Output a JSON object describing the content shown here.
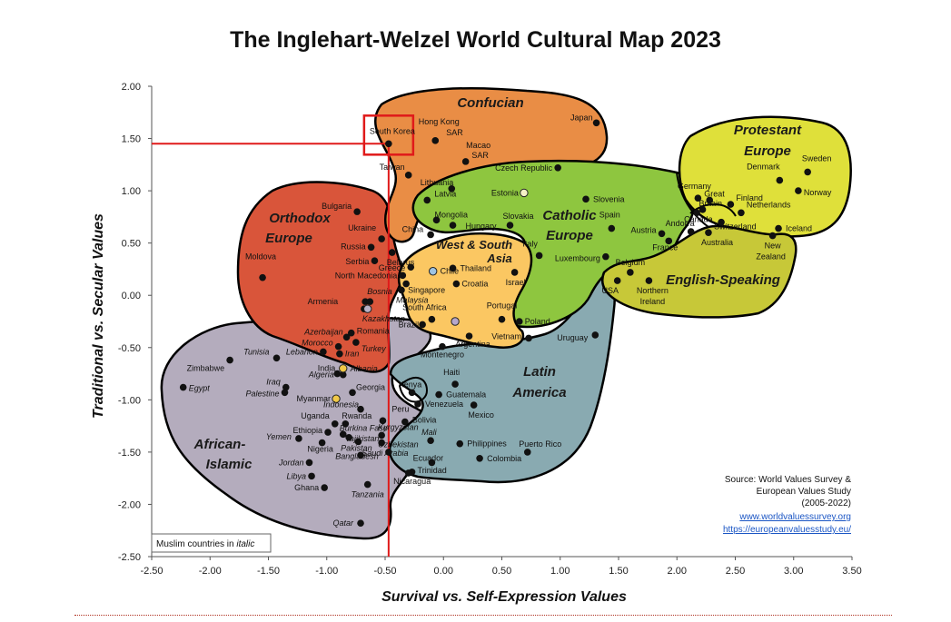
{
  "title": "The Inglehart-Welzel World Cultural Map 2023",
  "chart_data": {
    "type": "scatter",
    "title": "The Inglehart-Welzel World Cultural Map 2023",
    "xlabel": "Survival vs. Self-Expression Values",
    "ylabel": "Traditional vs. Secular Values",
    "xlim": [
      -2.5,
      3.5
    ],
    "ylim": [
      -2.5,
      2.0
    ],
    "xticks": [
      "-2.50",
      "-2.00",
      "-1.50",
      "-1.00",
      "-0.50",
      "0.00",
      "0.50",
      "1.00",
      "1.50",
      "2.00",
      "2.50",
      "3.00",
      "3.50"
    ],
    "yticks": [
      "2.00",
      "1.50",
      "1.00",
      "0.50",
      "0.00",
      "-0.50",
      "-1.00",
      "-1.50",
      "-2.00",
      "-2.50"
    ],
    "grid": false,
    "regions": [
      {
        "name": "Confucian",
        "color": "#e98d45"
      },
      {
        "name": "Protestant Europe",
        "color": "#dfe03a"
      },
      {
        "name": "Catholic Europe",
        "color": "#8ec63f"
      },
      {
        "name": "English-Speaking",
        "color": "#c7c838"
      },
      {
        "name": "Orthodox Europe",
        "color": "#d9553a"
      },
      {
        "name": "West & South Asia",
        "color": "#fbc762"
      },
      {
        "name": "Latin America",
        "color": "#89aab1"
      },
      {
        "name": "African-Islamic",
        "color": "#b4acbd"
      }
    ],
    "highlight": {
      "label": "South Korea",
      "x": -0.47,
      "y": 1.45,
      "color": "#e01a1a"
    },
    "countries": [
      {
        "name": "Japan",
        "x": 1.31,
        "y": 1.65,
        "lx": -4,
        "ly": -3,
        "a": "end"
      },
      {
        "name": "Hong Kong",
        "x": -0.07,
        "y": 1.48,
        "lx": 4,
        "ly": -18,
        "a": "middle"
      },
      {
        "name": "SAR",
        "x": -0.07,
        "y": 1.48,
        "lx": 12,
        "ly": -6,
        "a": "start"
      },
      {
        "name": "South Korea",
        "x": -0.47,
        "y": 1.45,
        "lx": 4,
        "ly": -11,
        "a": "middle"
      },
      {
        "name": "Macao",
        "x": 0.19,
        "y": 1.28,
        "lx": 14,
        "ly": -15,
        "a": "middle"
      },
      {
        "name": "SAR",
        "x": 0.19,
        "y": 1.28,
        "lx": 16,
        "ly": -4,
        "a": "middle"
      },
      {
        "name": "Taiwan",
        "x": -0.3,
        "y": 1.15,
        "lx": -4,
        "ly": -6,
        "a": "end"
      },
      {
        "name": "Czech Republic",
        "x": 0.98,
        "y": 1.22,
        "lx": -6,
        "ly": 3,
        "a": "end"
      },
      {
        "name": "Lithuania",
        "x": 0.07,
        "y": 1.02,
        "lx": 2,
        "ly": -4,
        "a": "end"
      },
      {
        "name": "Latvia",
        "x": -0.14,
        "y": 0.91,
        "lx": 8,
        "ly": -4,
        "a": "start"
      },
      {
        "name": "Estonia",
        "x": 0.69,
        "y": 0.98,
        "lx": -6,
        "ly": 3,
        "a": "end"
      },
      {
        "name": "Slovenia",
        "x": 1.22,
        "y": 0.92,
        "lx": 8,
        "ly": 3,
        "a": "start"
      },
      {
        "name": "Mongolia",
        "x": -0.06,
        "y": 0.72,
        "lx": -2,
        "ly": -3,
        "a": "start"
      },
      {
        "name": "Hungary",
        "x": 0.08,
        "y": 0.67,
        "lx": 14,
        "ly": 4,
        "a": "start"
      },
      {
        "name": "Slovakia",
        "x": 0.57,
        "y": 0.67,
        "lx": -8,
        "ly": -7,
        "a": "start"
      },
      {
        "name": "Spain",
        "x": 1.44,
        "y": 0.64,
        "lx": -2,
        "ly": -12,
        "a": "middle"
      },
      {
        "name": "China",
        "x": -0.11,
        "y": 0.58,
        "lx": -8,
        "ly": -3,
        "a": "end"
      },
      {
        "name": "Bulgaria",
        "x": -0.74,
        "y": 0.8,
        "lx": -6,
        "ly": -3,
        "a": "end"
      },
      {
        "name": "Ukraine",
        "x": -0.53,
        "y": 0.54,
        "lx": -6,
        "ly": -9,
        "a": "end"
      },
      {
        "name": "Russia",
        "x": -0.62,
        "y": 0.46,
        "lx": -6,
        "ly": 2,
        "a": "end"
      },
      {
        "name": "Belarus",
        "x": -0.44,
        "y": 0.41,
        "lx": -6,
        "ly": 14,
        "a": "start"
      },
      {
        "name": "Serbia",
        "x": -0.59,
        "y": 0.33,
        "lx": -6,
        "ly": 4,
        "a": "end"
      },
      {
        "name": "Greece",
        "x": -0.28,
        "y": 0.27,
        "lx": -6,
        "ly": 4,
        "a": "end"
      },
      {
        "name": "North Macedonia",
        "x": -0.35,
        "y": 0.19,
        "lx": -6,
        "ly": 3,
        "a": "end"
      },
      {
        "name": "Moldova",
        "x": -1.55,
        "y": 0.17,
        "lx": -2,
        "ly": -20,
        "a": "middle"
      },
      {
        "name": "Armenia",
        "x": -0.67,
        "y": -0.06,
        "lx": -30,
        "ly": 3,
        "a": "end"
      },
      {
        "name": "Bosnia",
        "x": -0.63,
        "y": -0.06,
        "lx": -3,
        "ly": -8,
        "a": "start",
        "it": true
      },
      {
        "name": "Kazakhstan",
        "x": -0.68,
        "y": -0.13,
        "lx": -2,
        "ly": 14,
        "a": "start",
        "it": true
      },
      {
        "name": "Romania",
        "x": -0.79,
        "y": -0.36,
        "lx": 6,
        "ly": 1,
        "a": "start"
      },
      {
        "name": "Thailand",
        "x": 0.08,
        "y": 0.26,
        "lx": 8,
        "ly": 3,
        "a": "start"
      },
      {
        "name": "Chile",
        "x": -0.09,
        "y": 0.23,
        "lx": 8,
        "ly": 3,
        "a": "start"
      },
      {
        "name": "Israel",
        "x": 0.61,
        "y": 0.22,
        "lx": -10,
        "ly": 14,
        "a": "start"
      },
      {
        "name": "Singapore",
        "x": -0.32,
        "y": 0.11,
        "lx": 2,
        "ly": 10,
        "a": "start"
      },
      {
        "name": "Croatia",
        "x": 0.11,
        "y": 0.11,
        "lx": 6,
        "ly": 3,
        "a": "start"
      },
      {
        "name": "Malaysia",
        "x": -0.36,
        "y": 0.05,
        "lx": -6,
        "ly": 14,
        "a": "start",
        "it": true
      },
      {
        "name": "South Africa",
        "x": -0.1,
        "y": -0.23,
        "lx": -8,
        "ly": -10,
        "a": "middle"
      },
      {
        "name": "Portugal",
        "x": 0.5,
        "y": -0.23,
        "lx": 0,
        "ly": -12,
        "a": "middle"
      },
      {
        "name": "Poland",
        "x": 0.65,
        "y": -0.25,
        "lx": 6,
        "ly": 3,
        "a": "start"
      },
      {
        "name": "Brazil",
        "x": -0.18,
        "y": -0.28,
        "lx": -4,
        "ly": 3,
        "a": "end"
      },
      {
        "name": "Vietnam",
        "x": 0.73,
        "y": -0.41,
        "lx": -8,
        "ly": 1,
        "a": "end"
      },
      {
        "name": "Argentina",
        "x": 0.22,
        "y": -0.39,
        "lx": 4,
        "ly": 12,
        "a": "middle"
      },
      {
        "name": "Luxembourg",
        "x": 1.39,
        "y": 0.37,
        "lx": -6,
        "ly": 5,
        "a": "end"
      },
      {
        "name": "Italy",
        "x": 0.82,
        "y": 0.38,
        "lx": -10,
        "ly": -10,
        "a": "middle"
      },
      {
        "name": "Belgium",
        "x": 1.6,
        "y": 0.22,
        "lx": 0,
        "ly": -8,
        "a": "middle"
      },
      {
        "name": "Austria",
        "x": 1.87,
        "y": 0.59,
        "lx": -6,
        "ly": -1,
        "a": "end"
      },
      {
        "name": "Andorra",
        "x": 2.12,
        "y": 0.61,
        "lx": -12,
        "ly": -6,
        "a": "middle"
      },
      {
        "name": "France",
        "x": 1.93,
        "y": 0.52,
        "lx": -4,
        "ly": 10,
        "a": "middle"
      },
      {
        "name": "Germany",
        "x": 2.18,
        "y": 0.93,
        "lx": -4,
        "ly": -10,
        "a": "middle"
      },
      {
        "name": "Great",
        "x": 2.28,
        "y": 0.91,
        "lx": -6,
        "ly": -4,
        "a": "start"
      },
      {
        "name": "Britain",
        "x": 2.22,
        "y": 0.82,
        "lx": -4,
        "ly": -4,
        "a": "start"
      },
      {
        "name": "Canada",
        "x": 2.17,
        "y": 0.79,
        "lx": -14,
        "ly": 10,
        "a": "start"
      },
      {
        "name": "Finland",
        "x": 2.46,
        "y": 0.87,
        "lx": 6,
        "ly": -4,
        "a": "start"
      },
      {
        "name": "Netherlands",
        "x": 2.55,
        "y": 0.79,
        "lx": 6,
        "ly": -6,
        "a": "start"
      },
      {
        "name": "Switzerland",
        "x": 2.38,
        "y": 0.7,
        "lx": -8,
        "ly": 8,
        "a": "start"
      },
      {
        "name": "Australia",
        "x": 2.27,
        "y": 0.6,
        "lx": -8,
        "ly": 14,
        "a": "start"
      },
      {
        "name": "Iceland",
        "x": 2.87,
        "y": 0.64,
        "lx": 8,
        "ly": 3,
        "a": "start"
      },
      {
        "name": "New",
        "x": 2.82,
        "y": 0.57,
        "lx": 0,
        "ly": 14,
        "a": "middle"
      },
      {
        "name": "Zealand",
        "x": 2.82,
        "y": 0.57,
        "lx": -2,
        "ly": 26,
        "a": "middle"
      },
      {
        "name": "Denmark",
        "x": 2.88,
        "y": 1.1,
        "lx": -18,
        "ly": -12,
        "a": "middle"
      },
      {
        "name": "Sweden",
        "x": 3.12,
        "y": 1.18,
        "lx": 10,
        "ly": -12,
        "a": "middle"
      },
      {
        "name": "Norway",
        "x": 3.04,
        "y": 1.0,
        "lx": 6,
        "ly": 5,
        "a": "start"
      },
      {
        "name": "USA",
        "x": 1.49,
        "y": 0.14,
        "lx": -8,
        "ly": 14,
        "a": "middle"
      },
      {
        "name": "Northern",
        "x": 1.76,
        "y": 0.14,
        "lx": 4,
        "ly": 14,
        "a": "middle"
      },
      {
        "name": "Ireland",
        "x": 1.76,
        "y": 0.14,
        "lx": 4,
        "ly": 26,
        "a": "middle"
      },
      {
        "name": "Uruguay",
        "x": 1.3,
        "y": -0.38,
        "lx": -8,
        "ly": 6,
        "a": "end"
      },
      {
        "name": "Azerbaijan",
        "x": -0.83,
        "y": -0.4,
        "lx": -4,
        "ly": -3,
        "a": "end",
        "it": true
      },
      {
        "name": "Morocco",
        "x": -0.9,
        "y": -0.49,
        "lx": -6,
        "ly": -1,
        "a": "end",
        "it": true
      },
      {
        "name": "Lebanon",
        "x": -1.03,
        "y": -0.54,
        "lx": -6,
        "ly": 3,
        "a": "end",
        "it": true
      },
      {
        "name": "Iran",
        "x": -0.89,
        "y": -0.56,
        "lx": 6,
        "ly": 3,
        "a": "start",
        "it": true
      },
      {
        "name": "Turkey",
        "x": -0.75,
        "y": -0.45,
        "lx": 6,
        "ly": 10,
        "a": "start",
        "it": true
      },
      {
        "name": "Tunisia",
        "x": -1.43,
        "y": -0.6,
        "lx": -8,
        "ly": -4,
        "a": "end",
        "it": true
      },
      {
        "name": "India",
        "x": -0.91,
        "y": -0.75,
        "lx": -2,
        "ly": -3,
        "a": "end"
      },
      {
        "name": "Albania",
        "x": -0.86,
        "y": -0.7,
        "lx": 8,
        "ly": 3,
        "a": "start",
        "it": true
      },
      {
        "name": "Algeria",
        "x": -0.86,
        "y": -0.76,
        "lx": -10,
        "ly": 3,
        "a": "end",
        "it": true
      },
      {
        "name": "Zimbabwe",
        "x": -1.83,
        "y": -0.62,
        "lx": -6,
        "ly": 12,
        "a": "end"
      },
      {
        "name": "Iraq",
        "x": -1.35,
        "y": -0.88,
        "lx": -6,
        "ly": -3,
        "a": "end",
        "it": true
      },
      {
        "name": "Palestine",
        "x": -1.36,
        "y": -0.93,
        "lx": -6,
        "ly": 4,
        "a": "end",
        "it": true
      },
      {
        "name": "Egypt",
        "x": -2.23,
        "y": -0.88,
        "lx": 6,
        "ly": 4,
        "a": "start",
        "it": true
      },
      {
        "name": "Georgia",
        "x": -0.78,
        "y": -0.93,
        "lx": 4,
        "ly": -3,
        "a": "start"
      },
      {
        "name": "Myanmar",
        "x": -0.92,
        "y": -0.99,
        "lx": -6,
        "ly": 3,
        "a": "end"
      },
      {
        "name": "Indonesia",
        "x": -0.71,
        "y": -1.09,
        "lx": -2,
        "ly": -2,
        "a": "end",
        "it": true
      },
      {
        "name": "Montenegro",
        "x": -0.01,
        "y": -0.49,
        "lx": 0,
        "ly": 12,
        "a": "middle"
      },
      {
        "name": "Haiti",
        "x": 0.1,
        "y": -0.85,
        "lx": -4,
        "ly": -10,
        "a": "middle"
      },
      {
        "name": "Kenya",
        "x": -0.27,
        "y": -0.93,
        "lx": -2,
        "ly": -6,
        "a": "middle"
      },
      {
        "name": "Guatemala",
        "x": -0.04,
        "y": -0.95,
        "lx": 8,
        "ly": 3,
        "a": "start"
      },
      {
        "name": "Venezuela",
        "x": -0.22,
        "y": -1.04,
        "lx": 8,
        "ly": 3,
        "a": "start"
      },
      {
        "name": "Mexico",
        "x": 0.26,
        "y": -1.05,
        "lx": 8,
        "ly": 14,
        "a": "middle"
      },
      {
        "name": "Peru",
        "x": -0.52,
        "y": -1.2,
        "lx": 10,
        "ly": -10,
        "a": "start"
      },
      {
        "name": "Bolivia",
        "x": -0.33,
        "y": -1.21,
        "lx": 8,
        "ly": 1,
        "a": "start"
      },
      {
        "name": "Uganda",
        "x": -0.93,
        "y": -1.23,
        "lx": -6,
        "ly": -6,
        "a": "end"
      },
      {
        "name": "Rwanda",
        "x": -0.84,
        "y": -1.23,
        "lx": -4,
        "ly": -6,
        "a": "start"
      },
      {
        "name": "Ethiopia",
        "x": -0.99,
        "y": -1.31,
        "lx": -6,
        "ly": 1,
        "a": "end"
      },
      {
        "name": "Burkina Faso",
        "x": -0.86,
        "y": -1.33,
        "lx": -4,
        "ly": -4,
        "a": "start",
        "it": true
      },
      {
        "name": "Tajikistan",
        "x": -0.81,
        "y": -1.36,
        "lx": -4,
        "ly": 4,
        "a": "start",
        "it": true
      },
      {
        "name": "Kyrgyzstan",
        "x": -0.53,
        "y": -1.34,
        "lx": -4,
        "ly": -6,
        "a": "start",
        "it": true
      },
      {
        "name": "Uzbekistan",
        "x": -0.53,
        "y": -1.41,
        "lx": -4,
        "ly": 5,
        "a": "start",
        "it": true
      },
      {
        "name": "Mali",
        "x": -0.11,
        "y": -1.39,
        "lx": -10,
        "ly": -6,
        "a": "start",
        "it": true
      },
      {
        "name": "Yemen",
        "x": -1.24,
        "y": -1.37,
        "lx": -8,
        "ly": 1,
        "a": "end",
        "it": true
      },
      {
        "name": "Nigeria",
        "x": -1.04,
        "y": -1.41,
        "lx": -2,
        "ly": 10,
        "a": "middle"
      },
      {
        "name": "Pakistan",
        "x": -0.73,
        "y": -1.4,
        "lx": -2,
        "ly": 10,
        "a": "middle",
        "it": true
      },
      {
        "name": "Philippines",
        "x": 0.14,
        "y": -1.42,
        "lx": 8,
        "ly": 3,
        "a": "start"
      },
      {
        "name": "Puerto Rico",
        "x": 0.72,
        "y": -1.5,
        "lx": 14,
        "ly": -6,
        "a": "middle"
      },
      {
        "name": "Bangladesh",
        "x": -0.71,
        "y": -1.53,
        "lx": -4,
        "ly": 4,
        "a": "middle",
        "it": true
      },
      {
        "name": "Saudi Arabia",
        "x": -0.47,
        "y": -1.5,
        "lx": -4,
        "ly": 4,
        "a": "middle",
        "it": true
      },
      {
        "name": "Ecuador",
        "x": -0.1,
        "y": -1.6,
        "lx": -4,
        "ly": -2,
        "a": "middle"
      },
      {
        "name": "Colombia",
        "x": 0.31,
        "y": -1.56,
        "lx": 8,
        "ly": 3,
        "a": "start"
      },
      {
        "name": "Trinidad",
        "x": -0.27,
        "y": -1.69,
        "lx": 6,
        "ly": 1,
        "a": "start"
      },
      {
        "name": "Nicaragua",
        "x": -0.3,
        "y": -1.7,
        "lx": 4,
        "ly": 12,
        "a": "middle"
      },
      {
        "name": "Jordan",
        "x": -1.15,
        "y": -1.6,
        "lx": -6,
        "ly": 3,
        "a": "end",
        "it": true
      },
      {
        "name": "Libya",
        "x": -1.13,
        "y": -1.73,
        "lx": -6,
        "ly": 3,
        "a": "end",
        "it": true
      },
      {
        "name": "Ghana",
        "x": -1.02,
        "y": -1.84,
        "lx": -6,
        "ly": 3,
        "a": "end"
      },
      {
        "name": "Tanzania",
        "x": -0.65,
        "y": -1.81,
        "lx": 0,
        "ly": 14,
        "a": "middle",
        "it": true
      },
      {
        "name": "Qatar",
        "x": -0.71,
        "y": -2.18,
        "lx": -8,
        "ly": 3,
        "a": "end",
        "it": true
      }
    ],
    "open_markers": [
      {
        "x": 0.69,
        "y": 0.98,
        "color": "#f6f1c6"
      },
      {
        "x": -0.09,
        "y": 0.23,
        "color": "#9fc4e3"
      },
      {
        "x": 0.1,
        "y": -0.25,
        "color": "#b6a7cc"
      },
      {
        "x": -0.65,
        "y": -0.13,
        "color": "#b9b0c5"
      },
      {
        "x": -0.86,
        "y": -0.7,
        "color": "#f1c948"
      },
      {
        "x": -0.92,
        "y": -0.99,
        "color": "#f1c948"
      }
    ]
  },
  "legend_note": {
    "prefix": "Muslim countries in ",
    "suffix": "italic"
  },
  "source": {
    "lines": [
      "Source: World Values Survey &",
      "European Values Study",
      "(2005-2022)"
    ],
    "links": [
      "www.worldvaluessurvey.org",
      "https://europeanvaluesstudy.eu/"
    ]
  },
  "colors": {
    "highlight": "#e01a1a",
    "outline": "#000000",
    "dot": "#111111"
  }
}
